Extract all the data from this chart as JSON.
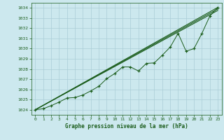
{
  "xlabel": "Graphe pression niveau de la mer (hPa)",
  "x_ticks": [
    0,
    1,
    2,
    3,
    4,
    5,
    6,
    7,
    8,
    9,
    10,
    11,
    12,
    13,
    14,
    15,
    16,
    17,
    18,
    19,
    20,
    21,
    22,
    23
  ],
  "xlim": [
    -0.5,
    23.5
  ],
  "ylim": [
    1023.5,
    1034.5
  ],
  "y_ticks": [
    1024,
    1025,
    1026,
    1027,
    1028,
    1029,
    1030,
    1031,
    1032,
    1033,
    1034
  ],
  "bg_color": "#cce8ee",
  "grid_color": "#aacdd6",
  "line_color": "#1a5c1a",
  "smooth_line1": [
    [
      0,
      1024.0
    ],
    [
      23,
      1034.05
    ]
  ],
  "smooth_line2": [
    [
      0,
      1024.0
    ],
    [
      23,
      1033.9
    ]
  ],
  "smooth_line3": [
    [
      0,
      1024.0
    ],
    [
      23,
      1033.75
    ]
  ],
  "data_line": [
    [
      0,
      1024.0
    ],
    [
      1,
      1024.1
    ],
    [
      2,
      1024.4
    ],
    [
      3,
      1024.75
    ],
    [
      4,
      1025.15
    ],
    [
      5,
      1025.2
    ],
    [
      6,
      1025.45
    ],
    [
      7,
      1025.85
    ],
    [
      8,
      1026.3
    ],
    [
      9,
      1027.05
    ],
    [
      10,
      1027.55
    ],
    [
      11,
      1028.2
    ],
    [
      12,
      1028.2
    ],
    [
      13,
      1027.8
    ],
    [
      14,
      1028.55
    ],
    [
      15,
      1028.6
    ],
    [
      16,
      1029.35
    ],
    [
      17,
      1030.15
    ],
    [
      18,
      1031.5
    ],
    [
      19,
      1029.75
    ],
    [
      20,
      1030.0
    ],
    [
      21,
      1031.5
    ],
    [
      22,
      1033.2
    ],
    [
      23,
      1034.05
    ]
  ]
}
